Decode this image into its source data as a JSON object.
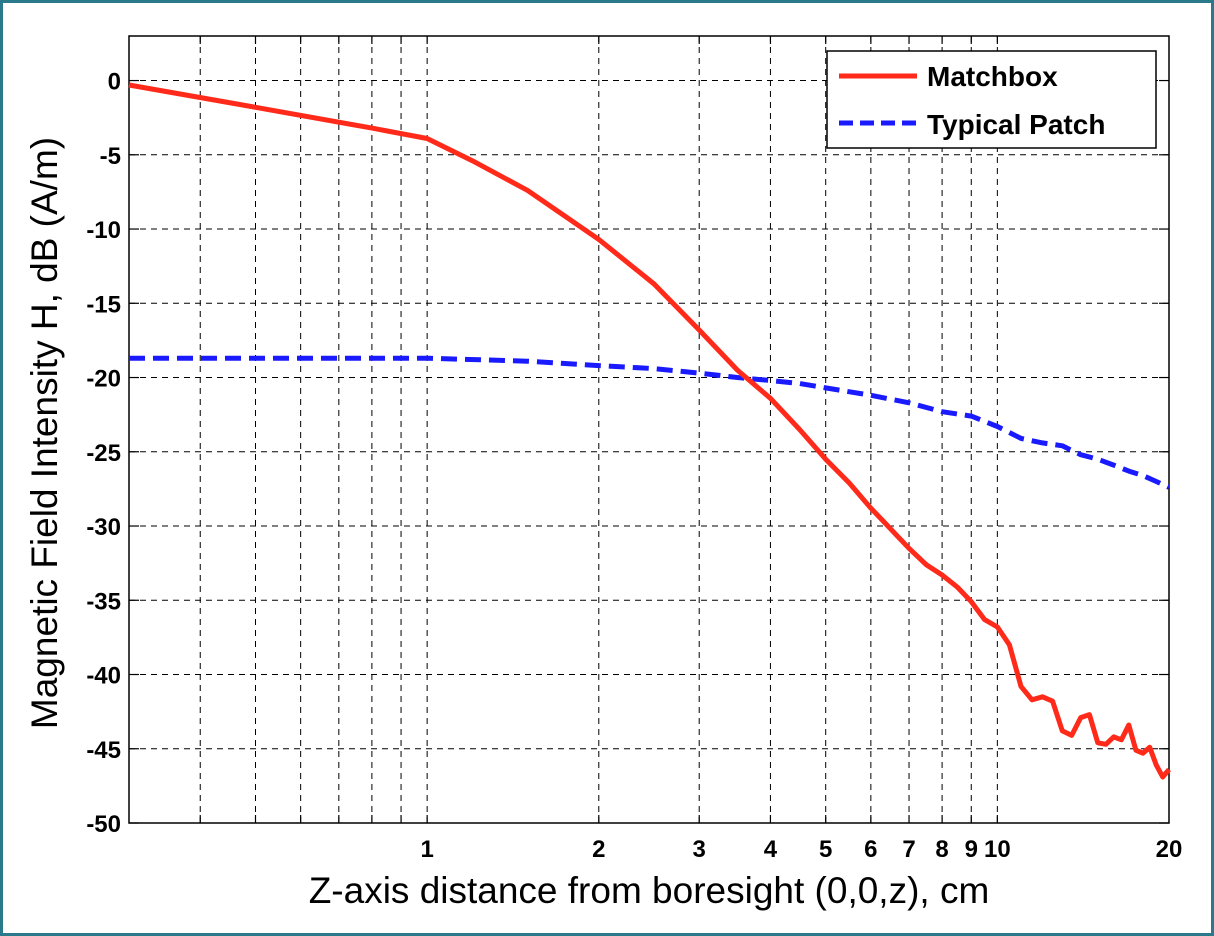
{
  "chart_data": {
    "type": "line",
    "xlabel": "Z-axis distance from boresight (0,0,z), cm",
    "ylabel": "Magnetic Field Intensity H, dB (A/m)",
    "xscale": "log",
    "xlim": [
      0.3,
      20
    ],
    "ylim": [
      -50,
      3
    ],
    "grid": true,
    "legend_position": "top-right",
    "x_ticks": [
      1,
      2,
      3,
      4,
      5,
      6,
      7,
      8,
      9,
      10,
      20
    ],
    "x_tick_labels": [
      "1",
      "2",
      "3",
      "4",
      "5",
      "6",
      "7",
      "8",
      "9",
      "10",
      "20"
    ],
    "y_ticks": [
      0,
      -5,
      -10,
      -15,
      -20,
      -25,
      -30,
      -35,
      -40,
      -45,
      -50
    ],
    "y_tick_labels": [
      "0",
      "-5",
      "-10",
      "-15",
      "-20",
      "-25",
      "-30",
      "-35",
      "-40",
      "-45",
      "-50"
    ],
    "series": [
      {
        "name": "Matchbox",
        "color": "#ff2a1a",
        "style": "solid",
        "x": [
          0.3,
          0.5,
          0.8,
          1,
          1.2,
          1.5,
          2,
          2.5,
          3,
          3.5,
          4,
          4.5,
          5,
          5.5,
          6,
          7,
          7.5,
          8,
          8.5,
          9,
          9.5,
          10,
          10.5,
          11,
          11.5,
          12,
          12.5,
          13,
          13.5,
          14,
          14.5,
          15,
          15.5,
          16,
          16.5,
          17,
          17.5,
          18,
          18.5,
          19,
          19.5,
          20
        ],
        "y": [
          -0.3,
          -1.8,
          -3.2,
          -3.9,
          -5.4,
          -7.4,
          -10.7,
          -13.7,
          -16.8,
          -19.5,
          -21.4,
          -23.5,
          -25.5,
          -27.1,
          -28.8,
          -31.5,
          -32.6,
          -33.3,
          -34.1,
          -35.1,
          -36.3,
          -36.8,
          -38.0,
          -40.8,
          -41.7,
          -41.5,
          -41.8,
          -43.8,
          -44.1,
          -42.9,
          -42.7,
          -44.6,
          -44.7,
          -44.2,
          -44.4,
          -43.4,
          -45.1,
          -45.3,
          -44.9,
          -46.1,
          -46.9,
          -46.4
        ]
      },
      {
        "name": "Typical Patch",
        "color": "#1a1aff",
        "style": "dashed",
        "x": [
          0.3,
          0.5,
          1,
          1.5,
          2,
          2.5,
          3,
          3.5,
          4,
          4.5,
          5,
          6,
          7,
          8,
          9,
          10,
          11,
          12,
          13,
          14,
          15,
          16,
          17,
          18,
          19,
          20
        ],
        "y": [
          -18.7,
          -18.7,
          -18.7,
          -18.9,
          -19.2,
          -19.4,
          -19.7,
          -20.0,
          -20.2,
          -20.4,
          -20.7,
          -21.2,
          -21.7,
          -22.3,
          -22.6,
          -23.3,
          -24.1,
          -24.4,
          -24.6,
          -25.2,
          -25.5,
          -25.9,
          -26.3,
          -26.6,
          -27.0,
          -27.4
        ]
      }
    ]
  }
}
